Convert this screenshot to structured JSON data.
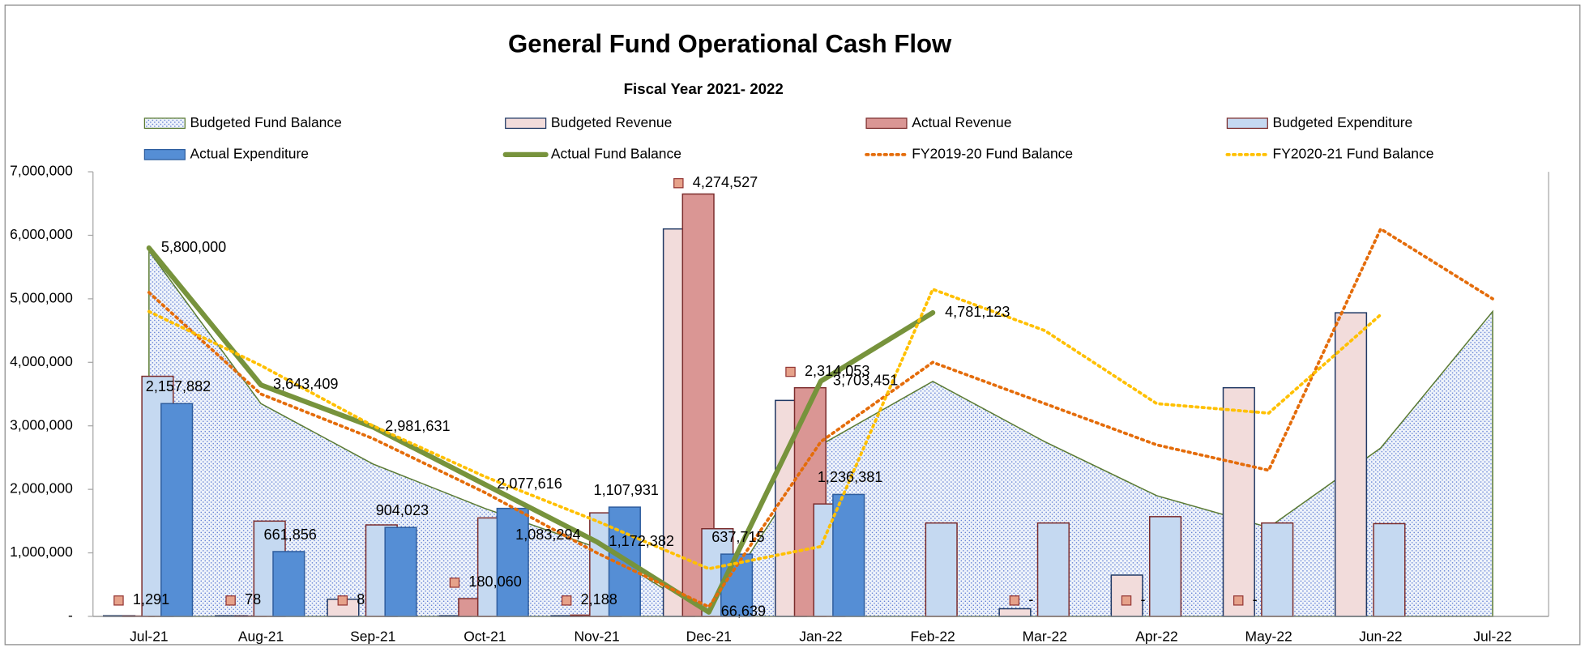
{
  "chart_data": {
    "type": "combo",
    "title": "General Fund Operational Cash Flow",
    "subtitle": "Fiscal Year 2021- 2022",
    "categories": [
      "Jul-21",
      "Aug-21",
      "Sep-21",
      "Oct-21",
      "Nov-21",
      "Dec-21",
      "Jan-22",
      "Feb-22",
      "Mar-22",
      "Apr-22",
      "May-22",
      "Jun-22",
      "Jul-22"
    ],
    "ylim": [
      0,
      7000000
    ],
    "yticks": [
      {
        "value": 0,
        "label": "-"
      },
      {
        "value": 1000000,
        "label": "1,000,000"
      },
      {
        "value": 2000000,
        "label": "2,000,000"
      },
      {
        "value": 3000000,
        "label": "3,000,000"
      },
      {
        "value": 4000000,
        "label": "4,000,000"
      },
      {
        "value": 5000000,
        "label": "5,000,000"
      },
      {
        "value": 6000000,
        "label": "6,000,000"
      },
      {
        "value": 7000000,
        "label": "7,000,000"
      }
    ],
    "grid": false,
    "legend": "top",
    "series": [
      {
        "name": "Budgeted Fund Balance",
        "kind": "area",
        "color": "#4f6fd0",
        "stroke": "#5a7a32",
        "values": [
          5750000,
          3350000,
          2400000,
          1700000,
          1083294,
          0,
          2700000,
          3700000,
          2750000,
          1900000,
          1400000,
          2650000,
          4800000
        ],
        "value_labels": [
          null,
          null,
          null,
          null,
          "1,083,294",
          null,
          null,
          null,
          null,
          null,
          null,
          null,
          null
        ]
      },
      {
        "name": "Budgeted Revenue",
        "kind": "bar",
        "color": "#f2dcdb",
        "stroke": "#1f3864",
        "values": [
          10000,
          10000,
          270000,
          10000,
          10000,
          6100000,
          3400000,
          0,
          120000,
          650000,
          3600000,
          4780000,
          0
        ]
      },
      {
        "name": "Actual Revenue",
        "kind": "bar",
        "color": "#da9694",
        "stroke": "#7b2c2c",
        "values": [
          5000,
          5000,
          0,
          280000,
          20000,
          6650000,
          3600000,
          0,
          0,
          0,
          0,
          0,
          0
        ]
      },
      {
        "name": "Budgeted Expenditure",
        "kind": "bar",
        "color": "#c5d9f1",
        "stroke": "#7b2c2c",
        "values": [
          3780000,
          1500000,
          1440000,
          1550000,
          1630000,
          1380000,
          1770000,
          1470000,
          1470000,
          1570000,
          1470000,
          1460000,
          0
        ]
      },
      {
        "name": "Actual Expenditure",
        "kind": "bar",
        "color": "#558ed5",
        "stroke": "#2e5d9e",
        "values": [
          3350000,
          1020000,
          1400000,
          1700000,
          1720000,
          980000,
          1920000,
          null,
          null,
          null,
          null,
          null,
          null
        ],
        "notes": [
          "2,157,882",
          "661,856",
          "904,023",
          null,
          "1,107,931",
          "637,715",
          "1,236,381",
          null,
          null,
          null,
          null,
          null,
          null
        ]
      },
      {
        "name": "Actual Fund Balance",
        "kind": "line",
        "color": "#77933c",
        "width": 5,
        "values": [
          5800000,
          3643409,
          2981631,
          2077616,
          1172382,
          66639,
          3703451,
          4781123,
          null,
          null,
          null,
          null,
          null
        ],
        "value_labels": [
          "5,800,000",
          "3,643,409",
          "2,981,631",
          "2,077,616",
          "1,172,382",
          "66,639",
          "3,703,451",
          "4,781,123",
          null,
          null,
          null,
          null,
          null
        ]
      },
      {
        "name": "FY2019-20 Fund Balance",
        "kind": "line",
        "dash": "dotted",
        "color": "#e46c0a",
        "width": 3,
        "values": [
          5100000,
          3500000,
          2800000,
          1950000,
          1000000,
          150000,
          2750000,
          4000000,
          3350000,
          2700000,
          2300000,
          6100000,
          5000000
        ]
      },
      {
        "name": "FY2020-21 Fund Balance",
        "kind": "line",
        "dash": "dotted",
        "color": "#ffc000",
        "width": 3,
        "values": [
          4800000,
          3950000,
          3000000,
          2200000,
          1500000,
          750000,
          1100000,
          5150000,
          4500000,
          3350000,
          3200000,
          4750000,
          null
        ]
      }
    ],
    "markers": {
      "color": "#e6a28a",
      "stroke": "#953735",
      "values": [
        250000,
        250000,
        250000,
        530000,
        250000,
        6820000,
        3850000,
        null,
        250000,
        250000,
        250000,
        null,
        null
      ],
      "labels": [
        "1,291",
        "78",
        "8",
        "180,060",
        "2,188",
        "4,274,527",
        "2,314,053",
        null,
        "-",
        "-",
        "-",
        null,
        null
      ]
    }
  }
}
